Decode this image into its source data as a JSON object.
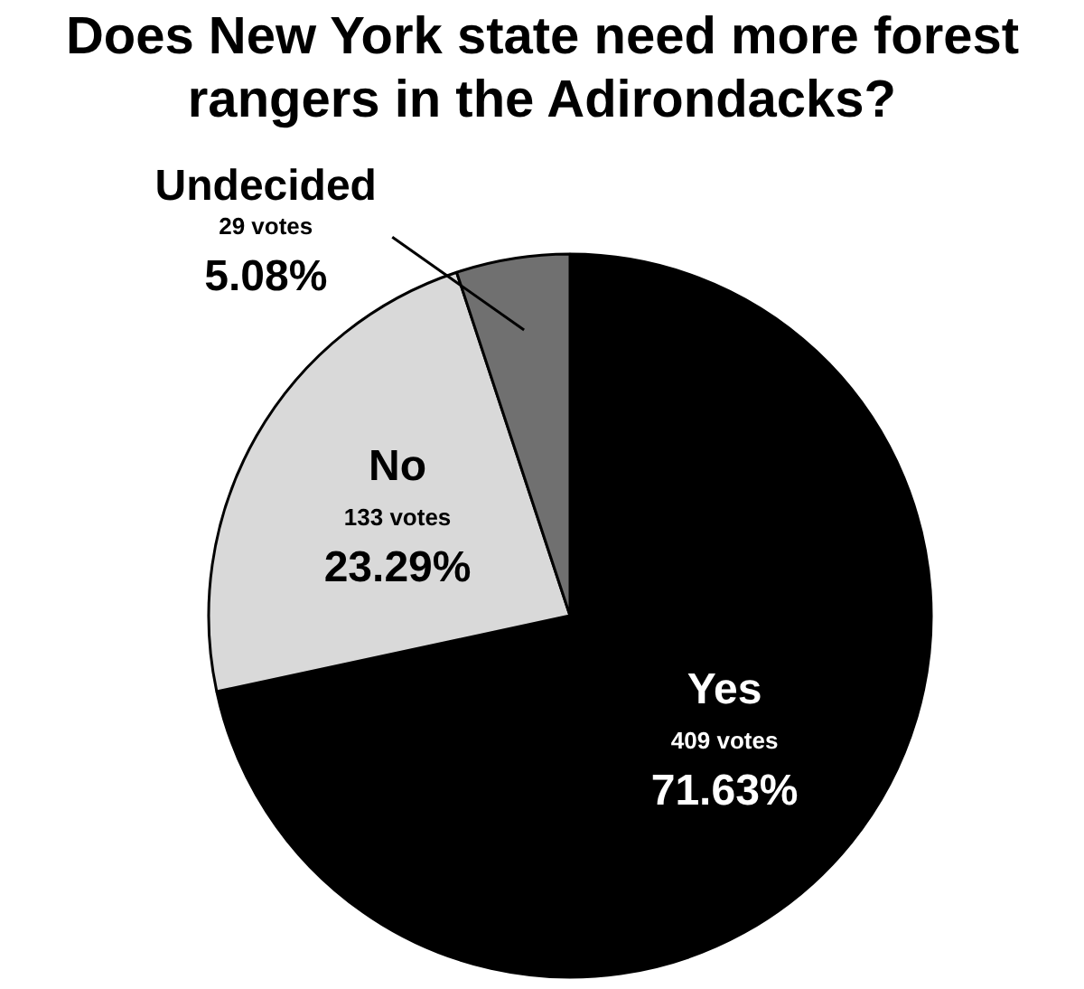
{
  "chart_data": {
    "type": "pie",
    "title": "Does New York state need more forest\nrangers in the Adirondacks?",
    "categories": [
      "Yes",
      "No",
      "Undecided"
    ],
    "values": [
      71.63,
      23.29,
      5.08
    ],
    "colors": [
      "#000000",
      "#d9d9d9",
      "#707070"
    ],
    "value_labels": [
      "71.63%",
      "23.29%",
      "5.08%"
    ],
    "annotations": [
      "409 votes",
      "133 votes",
      "29 votes"
    ]
  }
}
